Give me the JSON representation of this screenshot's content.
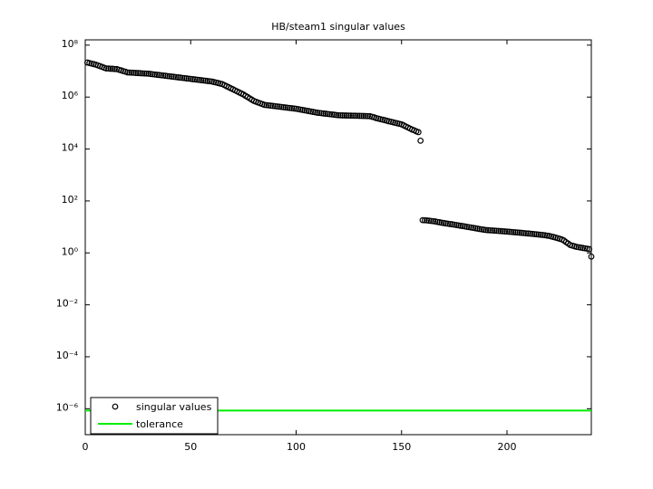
{
  "chart_data": {
    "type": "scatter",
    "title": "HB/steam1 singular values",
    "log_y": true,
    "xlim": [
      0,
      240
    ],
    "xticks": [
      0,
      50,
      100,
      150,
      200
    ],
    "ylim": [
      1e-07,
      160000000.0
    ],
    "yticks": [
      {
        "value": 1e-06,
        "label": "10⁻⁶"
      },
      {
        "value": 0.0001,
        "label": "10⁻⁴"
      },
      {
        "value": 0.01,
        "label": "10⁻²"
      },
      {
        "value": 1,
        "label": "10⁰"
      },
      {
        "value": 100,
        "label": "10²"
      },
      {
        "value": 10000,
        "label": "10⁴"
      },
      {
        "value": 1000000,
        "label": "10⁶"
      },
      {
        "value": 100000000,
        "label": "10⁸"
      }
    ],
    "legend": "lower left",
    "series": [
      {
        "name": "singular values",
        "color": "#000000",
        "x": [
          1,
          2,
          3,
          4,
          5,
          6,
          7,
          8,
          9,
          10,
          11,
          12,
          13,
          14,
          15,
          16,
          17,
          18,
          19,
          20,
          21,
          22,
          23,
          24,
          25,
          26,
          27,
          28,
          29,
          30,
          31,
          32,
          33,
          34,
          35,
          36,
          37,
          38,
          39,
          40,
          41,
          42,
          43,
          44,
          45,
          46,
          47,
          48,
          49,
          50,
          51,
          52,
          53,
          54,
          55,
          56,
          57,
          58,
          59,
          60,
          61,
          62,
          63,
          64,
          65,
          66,
          67,
          68,
          69,
          70,
          71,
          72,
          73,
          74,
          75,
          76,
          77,
          78,
          79,
          80,
          81,
          82,
          83,
          84,
          85,
          86,
          87,
          88,
          89,
          90,
          91,
          92,
          93,
          94,
          95,
          96,
          97,
          98,
          99,
          100,
          101,
          102,
          103,
          104,
          105,
          106,
          107,
          108,
          109,
          110,
          111,
          112,
          113,
          114,
          115,
          116,
          117,
          118,
          119,
          120,
          121,
          122,
          123,
          124,
          125,
          126,
          127,
          128,
          129,
          130,
          131,
          132,
          133,
          134,
          135,
          136,
          137,
          138,
          139,
          140,
          141,
          142,
          143,
          144,
          145,
          146,
          147,
          148,
          149,
          150,
          151,
          152,
          153,
          154,
          155,
          156,
          157,
          158,
          159,
          160,
          161,
          162,
          163,
          164,
          165,
          166,
          167,
          168,
          169,
          170,
          171,
          172,
          173,
          174,
          175,
          176,
          177,
          178,
          179,
          180,
          181,
          182,
          183,
          184,
          185,
          186,
          187,
          188,
          189,
          190,
          191,
          192,
          193,
          194,
          195,
          196,
          197,
          198,
          199,
          200,
          201,
          202,
          203,
          204,
          205,
          206,
          207,
          208,
          209,
          210,
          211,
          212,
          213,
          214,
          215,
          216,
          217,
          218,
          219,
          220,
          221,
          222,
          223,
          224,
          225,
          226,
          227,
          228,
          229,
          230,
          231,
          232,
          233,
          234,
          235,
          236,
          237,
          238,
          239,
          240
        ],
        "values": [
          21400000.0,
          20400000.0,
          19500000.0,
          18600000.0,
          17800000.0,
          16600000.0,
          15500000.0,
          14500000.0,
          13500000.0,
          12600000.0,
          12600000.0,
          12300000.0,
          12300000.0,
          12000000.0,
          12000000.0,
          11200000.0,
          10700000.0,
          10000000.0,
          9550000.0,
          8910000.0,
          8810000.0,
          8710000.0,
          8610000.0,
          8510000.0,
          8410000.0,
          8320000.0,
          8220000.0,
          8130000.0,
          8040000.0,
          7940000.0,
          7760000.0,
          7590000.0,
          7410000.0,
          7240000.0,
          7080000.0,
          6920000.0,
          6760000.0,
          6610000.0,
          6460000.0,
          6310000.0,
          6170000.0,
          6030000.0,
          5890000.0,
          5750000.0,
          5620000.0,
          5500000.0,
          5370000.0,
          5250000.0,
          5130000.0,
          5010000.0,
          4900000.0,
          4790000.0,
          4680000.0,
          4570000.0,
          4470000.0,
          4370000.0,
          4270000.0,
          4170000.0,
          4070000.0,
          3980000.0,
          3800000.0,
          3630000.0,
          3470000.0,
          3310000.0,
          3160000.0,
          2880000.0,
          2630000.0,
          2400000.0,
          2190000.0,
          2000000.0,
          1820000.0,
          1660000.0,
          1510000.0,
          1380000.0,
          1260000.0,
          1120000.0,
          1000000.0,
          891000.0,
          794000.0,
          708000.0,
          661000.0,
          617000.0,
          575000.0,
          537000.0,
          501000.0,
          490000.0,
          479000.0,
          468000.0,
          457000.0,
          447000.0,
          437000.0,
          427000.0,
          417000.0,
          407000.0,
          398000.0,
          389000.0,
          380000.0,
          372000.0,
          363000.0,
          355000.0,
          343000.0,
          331000.0,
          320000.0,
          309000.0,
          299000.0,
          288000.0,
          279000.0,
          269000.0,
          260000.0,
          251000.0,
          245000.0,
          240000.0,
          234000.0,
          229000.0,
          224000.0,
          219000.0,
          214000.0,
          209000.0,
          204000.0,
          200000.0,
          198000.0,
          197000.0,
          196000.0,
          195000.0,
          194000.0,
          193000.0,
          192000.0,
          191000.0,
          190000.0,
          189000.0,
          188000.0,
          187000.0,
          186000.0,
          185000.0,
          184000.0,
          174000.0,
          166000.0,
          155000.0,
          148000.0,
          141000.0,
          135000.0,
          129000.0,
          123000.0,
          117000.0,
          112000.0,
          107000.0,
          102000.0,
          97700.0,
          93300.0,
          89100.0,
          81300.0,
          74100.0,
          67600.0,
          61700.0,
          56200.0,
          52500.0,
          47900.0,
          44700.0,
          20900.0,
          18.2,
          18.0,
          17.8,
          17.4,
          17.0,
          16.6,
          16.2,
          15.5,
          15.1,
          14.5,
          14.1,
          13.7,
          13.3,
          12.9,
          12.6,
          12.2,
          11.8,
          11.5,
          11.1,
          10.8,
          10.5,
          10.1,
          9.8,
          9.5,
          9.2,
          8.9,
          8.6,
          8.3,
          8.1,
          7.8,
          7.6,
          7.5,
          7.4,
          7.3,
          7.2,
          7.1,
          7.0,
          6.9,
          6.8,
          6.7,
          6.6,
          6.5,
          6.4,
          6.3,
          6.2,
          6.1,
          6.0,
          5.9,
          5.8,
          5.7,
          5.6,
          5.5,
          5.4,
          5.3,
          5.2,
          5.1,
          5.0,
          4.9,
          4.8,
          4.6,
          4.5,
          4.3,
          4.1,
          3.9,
          3.7,
          3.5,
          3.3,
          3.0,
          2.6,
          2.3,
          2.0,
          1.9,
          1.8,
          1.7,
          1.65,
          1.6,
          1.55,
          1.5,
          1.45,
          1.4,
          0.72
        ]
      },
      {
        "name": "tolerance",
        "color": "#00ee00",
        "value": 8.5e-07
      }
    ]
  }
}
